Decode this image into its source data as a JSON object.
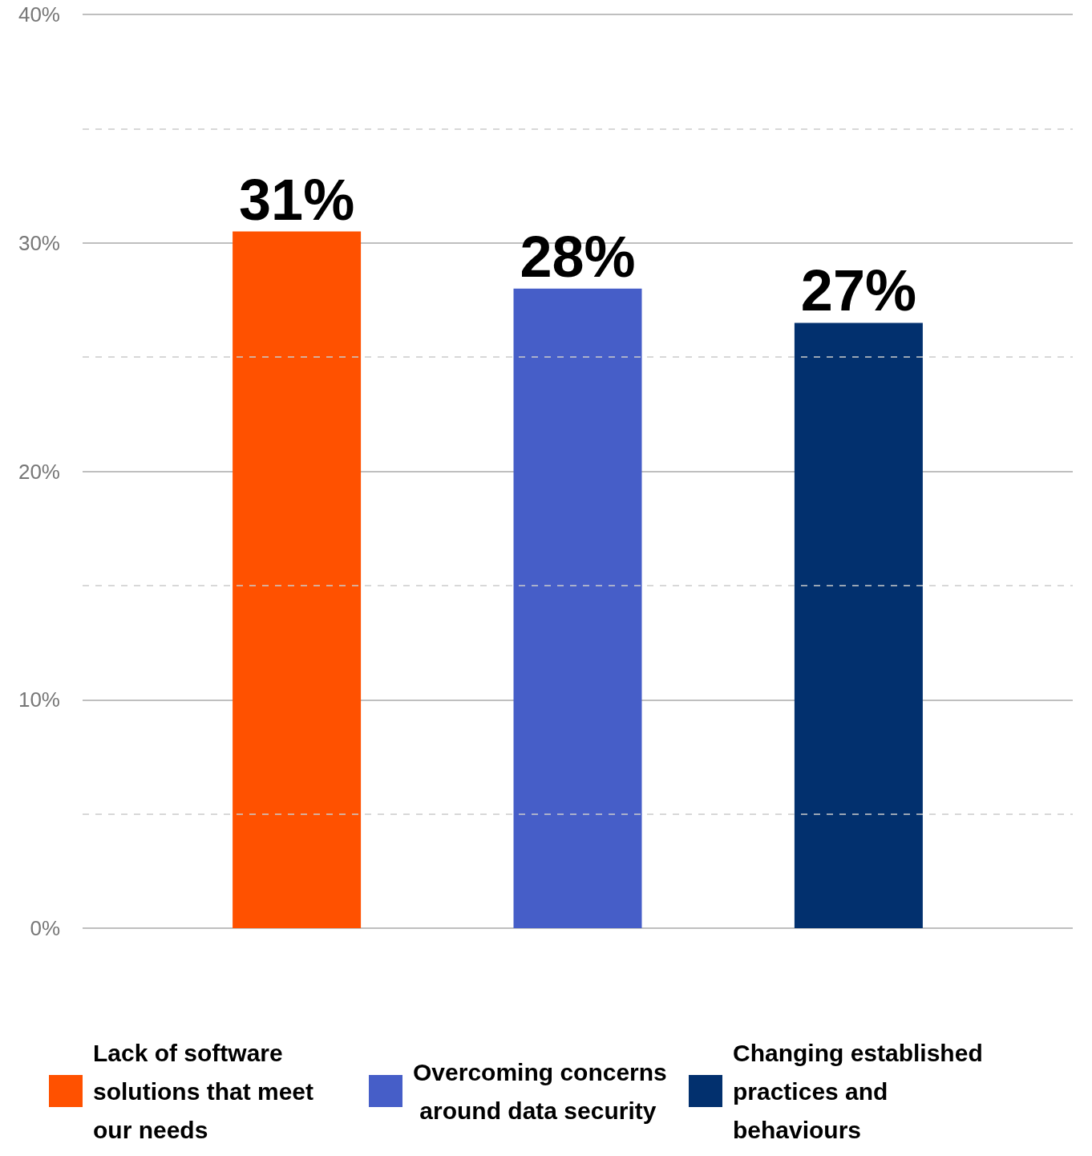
{
  "chart_data": {
    "type": "bar",
    "categories": [
      null
    ],
    "series": [
      {
        "name": "Lack of software solutions that meet our needs",
        "color": "#ff5100",
        "values": [
          30.5
        ],
        "value_labels": [
          "31%"
        ]
      },
      {
        "name": "Overcoming concerns around data security",
        "color": "#465ec8",
        "values": [
          28
        ],
        "value_labels": [
          "28%"
        ]
      },
      {
        "name": "Changing established practices and behaviours",
        "color": "#02306e",
        "values": [
          26.5
        ],
        "value_labels": [
          "27%"
        ]
      }
    ],
    "ylim": [
      0,
      40
    ],
    "yticks": [
      {
        "value": 0,
        "label": "0%"
      },
      {
        "value": 5,
        "label": null
      },
      {
        "value": 10,
        "label": "10%"
      },
      {
        "value": 15,
        "label": null
      },
      {
        "value": 20,
        "label": "20%"
      },
      {
        "value": 25,
        "label": null
      },
      {
        "value": 30,
        "label": "30%"
      },
      {
        "value": 35,
        "label": null
      },
      {
        "value": 40,
        "label": "40%"
      }
    ],
    "grid": "y",
    "legend": "bottom"
  }
}
